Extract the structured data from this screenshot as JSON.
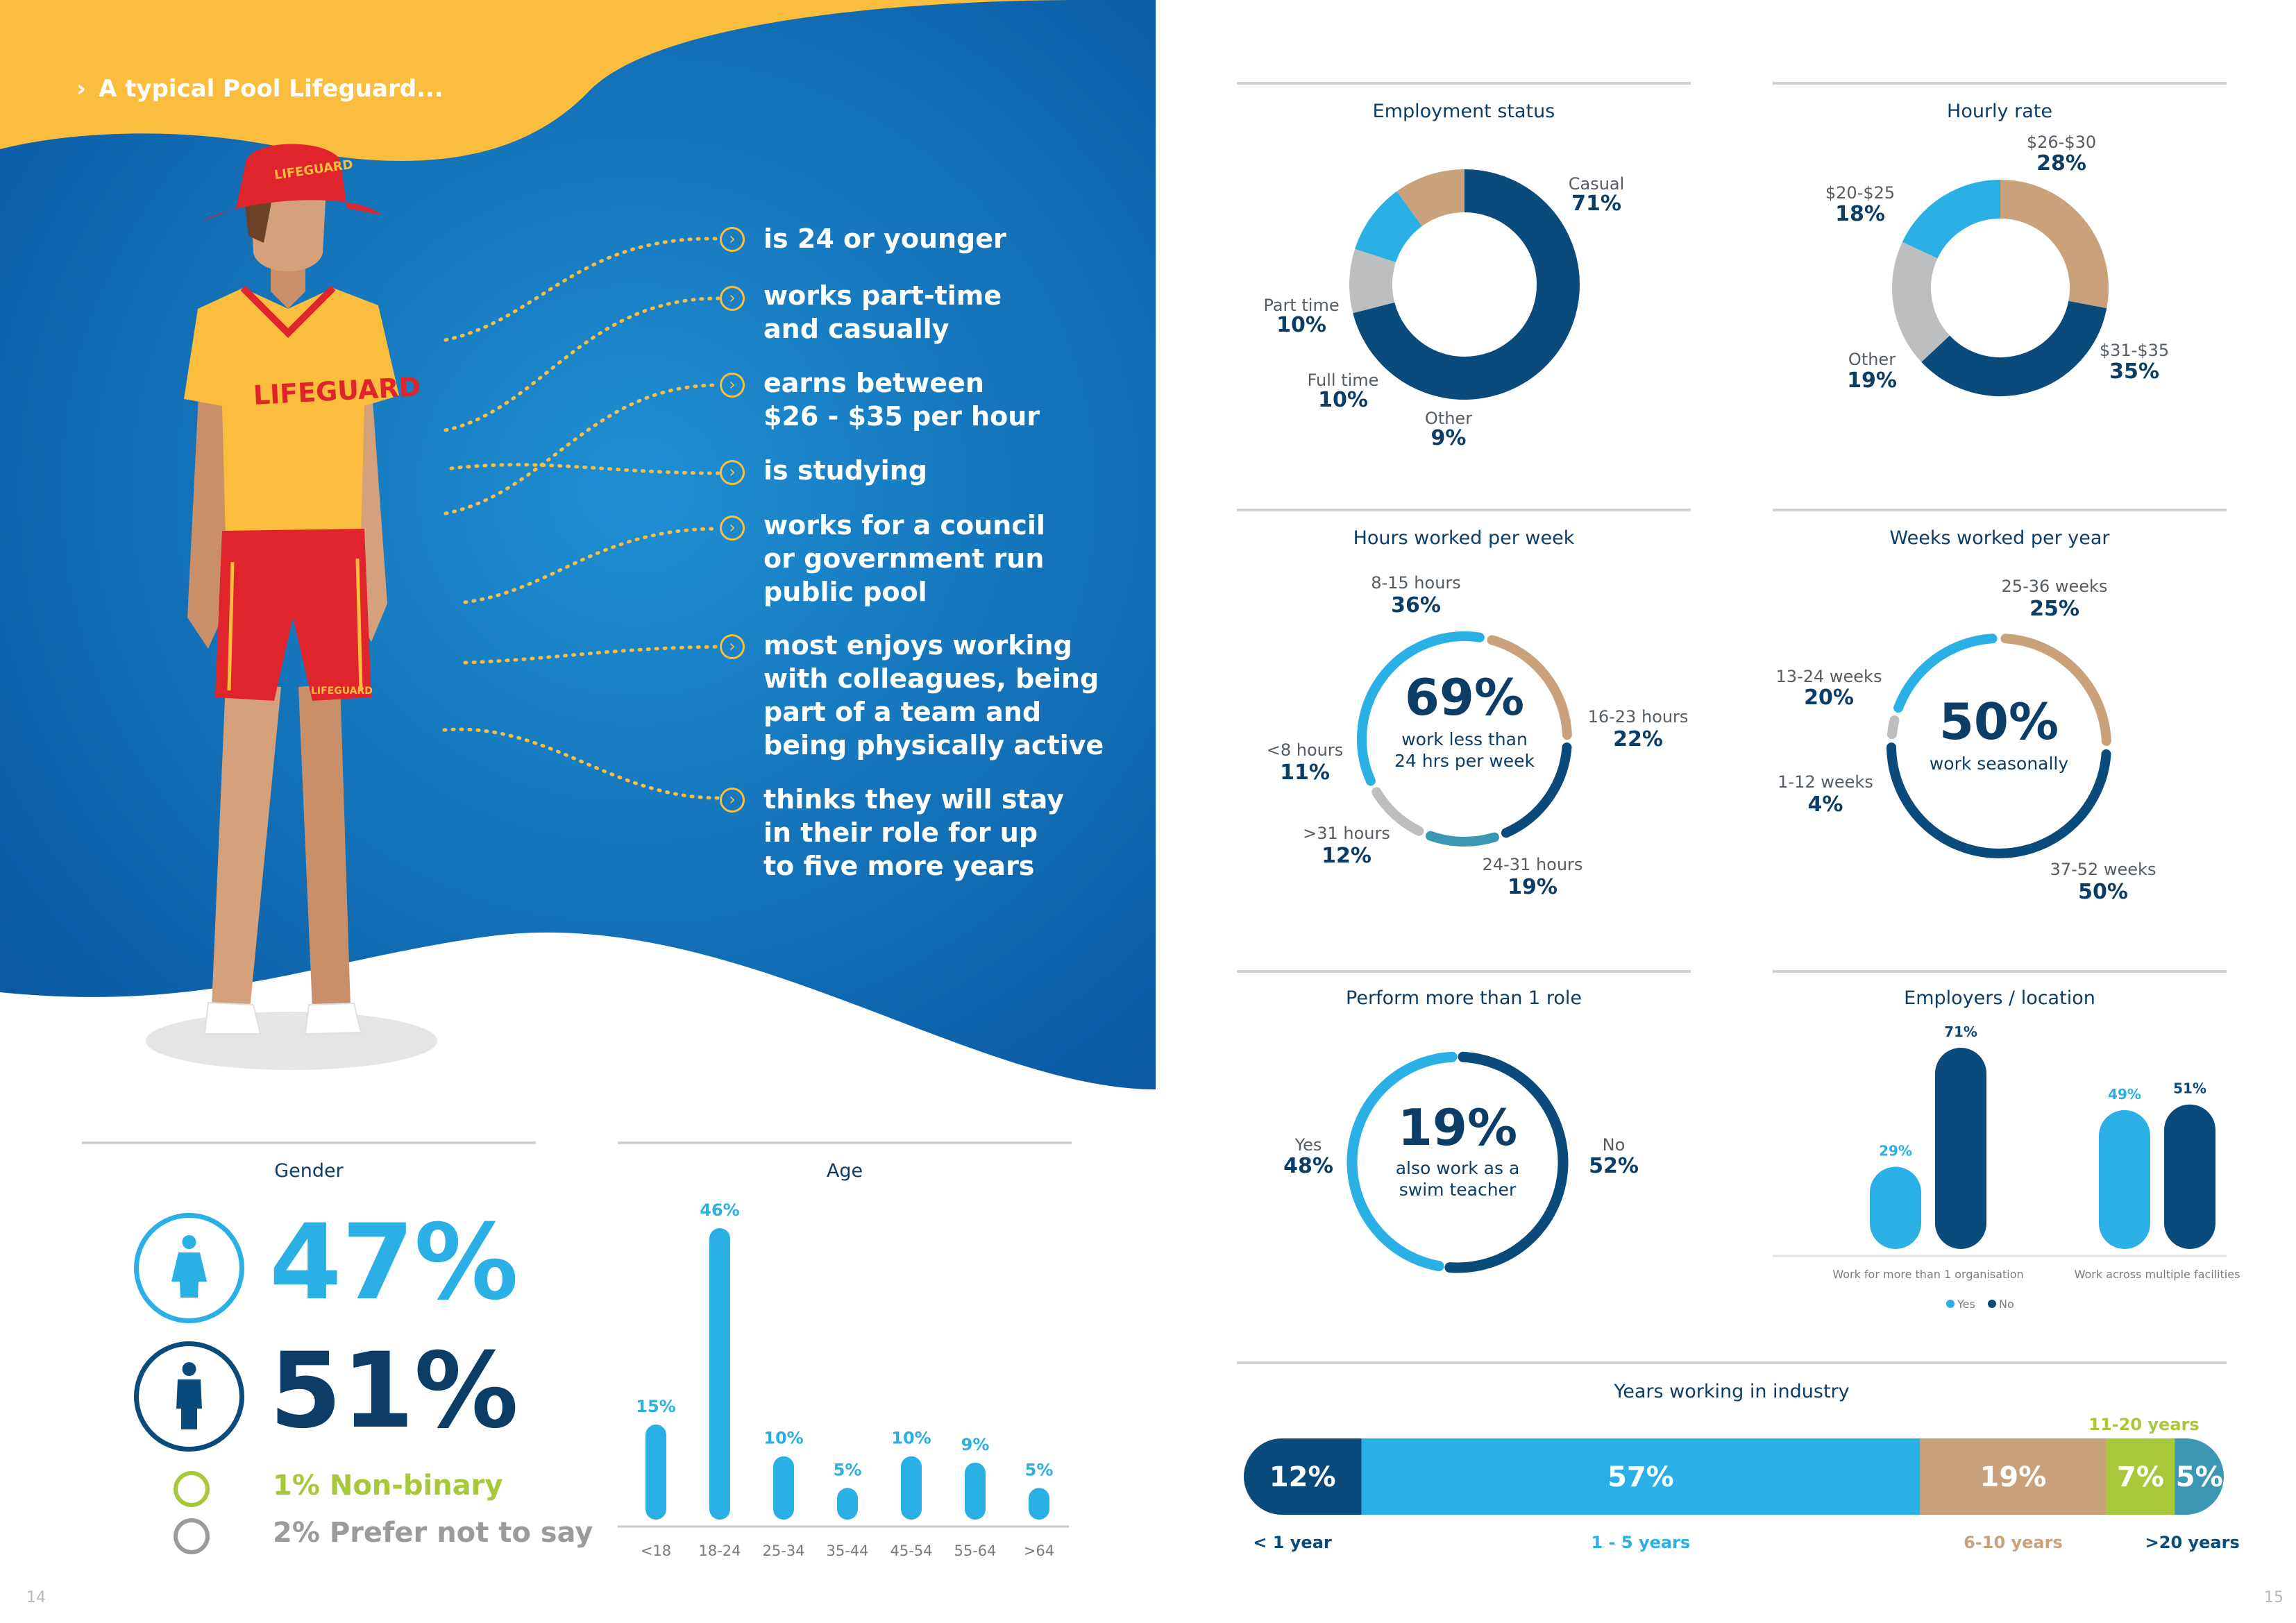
{
  "header": {
    "title": "A typical Pool Lifeguard..."
  },
  "figure": {
    "hat_text": "LIFEGUARD",
    "shirt_text": "LIFEGUARD",
    "shorts_text": "LIFEGUARD"
  },
  "traits": [
    "is 24 or younger",
    "works part-time\nand casually",
    "earns between\n$26 - $35 per hour",
    "is studying",
    "works for a council\nor government run\npublic pool",
    "most enjoys working\nwith colleagues, being\npart of a team and\nbeing physically active",
    "thinks they will stay\nin their role for up\nto five more years"
  ],
  "colors": {
    "navy": "#0b4b7c",
    "sky": "#2ab0e4",
    "tan": "#c9a27c",
    "grey": "#bcbec0",
    "teal": "#3b97b4",
    "green": "#a7c83a",
    "yellow": "#fbbd3d",
    "red": "#e0242b"
  },
  "gender": {
    "title": "Gender",
    "female": "47%",
    "male": "51%",
    "nonbinary": "1% Non-binary",
    "prefer_not": "2% Prefer not to say"
  },
  "page_numbers": {
    "left": "14",
    "right": "15"
  },
  "chart_data": [
    {
      "type": "pie",
      "title": "Employment status",
      "donut": true,
      "slices": [
        {
          "label": "Casual",
          "value": 71,
          "display": "71%"
        },
        {
          "label": "Other",
          "value": 9,
          "display": "9%"
        },
        {
          "label": "Full time",
          "value": 10,
          "display": "10%"
        },
        {
          "label": "Part time",
          "value": 10,
          "display": "10%"
        }
      ]
    },
    {
      "type": "pie",
      "title": "Hourly rate",
      "donut": true,
      "slices": [
        {
          "label": "$26-$30",
          "value": 28,
          "display": "28%"
        },
        {
          "label": "$31-$35",
          "value": 35,
          "display": "35%"
        },
        {
          "label": "Other",
          "value": 19,
          "display": "19%"
        },
        {
          "label": "$20-$25",
          "value": 18,
          "display": "18%"
        }
      ]
    },
    {
      "type": "pie",
      "title": "Hours worked per week",
      "donut": true,
      "center_value": "69%",
      "center_text": "work less than\n24 hrs per week",
      "slices": [
        {
          "label": "16-23 hours",
          "value": 22,
          "display": "22%"
        },
        {
          "label": "24-31 hours",
          "value": 19,
          "display": "19%"
        },
        {
          "label": ">31 hours",
          "value": 12,
          "display": "12%"
        },
        {
          "label": "<8 hours",
          "value": 11,
          "display": "11%"
        },
        {
          "label": "8-15 hours",
          "value": 36,
          "display": "36%"
        }
      ]
    },
    {
      "type": "pie",
      "title": "Weeks worked per year",
      "donut": true,
      "center_value": "50%",
      "center_text": "work seasonally",
      "slices": [
        {
          "label": "25-36 weeks",
          "value": 25,
          "display": "25%"
        },
        {
          "label": "37-52 weeks",
          "value": 50,
          "display": "50%"
        },
        {
          "label": "1-12 weeks",
          "value": 4,
          "display": "4%"
        },
        {
          "label": "13-24 weeks",
          "value": 20,
          "display": "20%"
        }
      ]
    },
    {
      "type": "pie",
      "title": "Perform more than 1 role",
      "donut": true,
      "center_value": "19%",
      "center_text": "also work as a\nswim teacher",
      "slices": [
        {
          "label": "No",
          "value": 52,
          "display": "52%"
        },
        {
          "label": "Yes",
          "value": 48,
          "display": "48%"
        }
      ]
    },
    {
      "type": "bar",
      "title": "Employers / location",
      "categories": [
        "Work for more than 1 organisation",
        "Work across multiple facilities"
      ],
      "series": [
        {
          "name": "Yes",
          "values": [
            29,
            49
          ]
        },
        {
          "name": "No",
          "values": [
            71,
            51
          ]
        }
      ],
      "ylim": [
        0,
        71
      ],
      "legend": "bottom"
    },
    {
      "type": "bar",
      "title": "Age",
      "categories": [
        "<18",
        "18-24",
        "25-34",
        "35-44",
        "45-54",
        "55-64",
        ">64"
      ],
      "values": [
        15,
        46,
        10,
        5,
        10,
        9,
        5
      ],
      "ylim": [
        0,
        46
      ]
    },
    {
      "type": "bar",
      "stacked": true,
      "orientation": "horizontal",
      "title": "Years working in industry",
      "categories": [
        "< 1 year",
        "1 - 5 years",
        "6-10 years",
        "11-20 years",
        ">20 years"
      ],
      "values": [
        12,
        57,
        19,
        7,
        5
      ]
    }
  ]
}
